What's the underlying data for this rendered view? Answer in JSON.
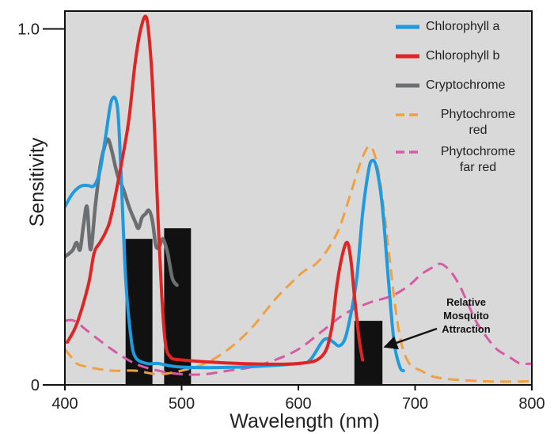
{
  "chart_data": {
    "type": "line",
    "title": "",
    "xlabel": "Wavelength (nm)",
    "ylabel": "Sensitivity",
    "xlim": [
      400,
      800
    ],
    "ylim": [
      0,
      1.05
    ],
    "x_ticks": [
      "400",
      "500",
      "600",
      "700",
      "800"
    ],
    "y_ticks": [
      {
        "value": 0,
        "label": "0"
      },
      {
        "value": 1.0,
        "label": "1.0"
      }
    ],
    "grid": false,
    "legend_position": "top-right",
    "background": "#d9d9d9",
    "series": [
      {
        "name": "Chlorophyll a",
        "color": "#1e9be0",
        "style": "solid",
        "points": [
          [
            400,
            0.5
          ],
          [
            405,
            0.53
          ],
          [
            410,
            0.55
          ],
          [
            415,
            0.56
          ],
          [
            420,
            0.56
          ],
          [
            425,
            0.56
          ],
          [
            430,
            0.6
          ],
          [
            435,
            0.7
          ],
          [
            440,
            0.8
          ],
          [
            445,
            0.78
          ],
          [
            448,
            0.6
          ],
          [
            452,
            0.3
          ],
          [
            456,
            0.15
          ],
          [
            460,
            0.08
          ],
          [
            470,
            0.06
          ],
          [
            480,
            0.06
          ],
          [
            500,
            0.05
          ],
          [
            550,
            0.05
          ],
          [
            600,
            0.06
          ],
          [
            610,
            0.07
          ],
          [
            620,
            0.12
          ],
          [
            625,
            0.13
          ],
          [
            630,
            0.12
          ],
          [
            635,
            0.11
          ],
          [
            640,
            0.13
          ],
          [
            645,
            0.2
          ],
          [
            650,
            0.3
          ],
          [
            655,
            0.48
          ],
          [
            660,
            0.6
          ],
          [
            663,
            0.63
          ],
          [
            667,
            0.61
          ],
          [
            672,
            0.5
          ],
          [
            677,
            0.3
          ],
          [
            682,
            0.12
          ],
          [
            687,
            0.05
          ],
          [
            690,
            0.04
          ]
        ]
      },
      {
        "name": "Chlorophyll b",
        "color": "#e02424",
        "style": "solid",
        "points": [
          [
            402,
            0.12
          ],
          [
            410,
            0.17
          ],
          [
            420,
            0.28
          ],
          [
            425,
            0.37
          ],
          [
            430,
            0.4
          ],
          [
            435,
            0.43
          ],
          [
            440,
            0.48
          ],
          [
            450,
            0.65
          ],
          [
            455,
            0.75
          ],
          [
            460,
            0.9
          ],
          [
            465,
            1.0
          ],
          [
            470,
            1.03
          ],
          [
            474,
            0.9
          ],
          [
            477,
            0.7
          ],
          [
            480,
            0.45
          ],
          [
            483,
            0.25
          ],
          [
            486,
            0.12
          ],
          [
            490,
            0.08
          ],
          [
            500,
            0.07
          ],
          [
            550,
            0.06
          ],
          [
            600,
            0.06
          ],
          [
            620,
            0.08
          ],
          [
            628,
            0.15
          ],
          [
            633,
            0.28
          ],
          [
            638,
            0.37
          ],
          [
            642,
            0.4
          ],
          [
            645,
            0.35
          ],
          [
            648,
            0.25
          ],
          [
            652,
            0.13
          ],
          [
            655,
            0.07
          ]
        ]
      },
      {
        "name": "Cryptochrome",
        "color": "#6b6f72",
        "style": "solid",
        "points": [
          [
            400,
            0.36
          ],
          [
            404,
            0.37
          ],
          [
            407,
            0.38
          ],
          [
            410,
            0.4
          ],
          [
            413,
            0.38
          ],
          [
            416,
            0.45
          ],
          [
            419,
            0.5
          ],
          [
            422,
            0.38
          ],
          [
            426,
            0.5
          ],
          [
            430,
            0.61
          ],
          [
            434,
            0.67
          ],
          [
            437,
            0.69
          ],
          [
            440,
            0.66
          ],
          [
            445,
            0.59
          ],
          [
            450,
            0.55
          ],
          [
            455,
            0.5
          ],
          [
            460,
            0.46
          ],
          [
            463,
            0.44
          ],
          [
            466,
            0.47
          ],
          [
            469,
            0.48
          ],
          [
            472,
            0.49
          ],
          [
            475,
            0.46
          ],
          [
            478,
            0.39
          ],
          [
            481,
            0.39
          ],
          [
            484,
            0.41
          ],
          [
            488,
            0.37
          ],
          [
            492,
            0.3
          ],
          [
            496,
            0.28
          ]
        ]
      },
      {
        "name": "Phytochrome red",
        "color": "#f0a040",
        "style": "dashed",
        "points": [
          [
            400,
            0.1
          ],
          [
            405,
            0.08
          ],
          [
            410,
            0.06
          ],
          [
            420,
            0.05
          ],
          [
            440,
            0.04
          ],
          [
            460,
            0.04
          ],
          [
            480,
            0.03
          ],
          [
            500,
            0.04
          ],
          [
            520,
            0.06
          ],
          [
            540,
            0.1
          ],
          [
            560,
            0.16
          ],
          [
            580,
            0.24
          ],
          [
            595,
            0.29
          ],
          [
            605,
            0.32
          ],
          [
            615,
            0.34
          ],
          [
            625,
            0.38
          ],
          [
            635,
            0.44
          ],
          [
            645,
            0.54
          ],
          [
            655,
            0.64
          ],
          [
            662,
            0.67
          ],
          [
            668,
            0.61
          ],
          [
            673,
            0.5
          ],
          [
            678,
            0.36
          ],
          [
            683,
            0.22
          ],
          [
            688,
            0.12
          ],
          [
            695,
            0.06
          ],
          [
            705,
            0.04
          ],
          [
            720,
            0.02
          ],
          [
            760,
            0.01
          ],
          [
            800,
            0.01
          ]
        ]
      },
      {
        "name": "Phytochrome far red",
        "color": "#d65aa4",
        "style": "dashed",
        "points": [
          [
            400,
            0.18
          ],
          [
            408,
            0.18
          ],
          [
            420,
            0.15
          ],
          [
            440,
            0.1
          ],
          [
            460,
            0.06
          ],
          [
            480,
            0.04
          ],
          [
            500,
            0.03
          ],
          [
            520,
            0.03
          ],
          [
            540,
            0.04
          ],
          [
            560,
            0.05
          ],
          [
            580,
            0.07
          ],
          [
            600,
            0.1
          ],
          [
            620,
            0.15
          ],
          [
            640,
            0.2
          ],
          [
            660,
            0.23
          ],
          [
            680,
            0.25
          ],
          [
            695,
            0.28
          ],
          [
            705,
            0.31
          ],
          [
            715,
            0.33
          ],
          [
            722,
            0.34
          ],
          [
            730,
            0.32
          ],
          [
            738,
            0.28
          ],
          [
            745,
            0.23
          ],
          [
            752,
            0.18
          ],
          [
            760,
            0.14
          ],
          [
            770,
            0.1
          ],
          [
            780,
            0.08
          ],
          [
            790,
            0.06
          ],
          [
            800,
            0.06
          ]
        ]
      }
    ],
    "bars": {
      "name": "Relative Mosquito Attraction",
      "color": "#111111",
      "items": [
        {
          "x0": 452,
          "x1": 475,
          "value": 0.41
        },
        {
          "x0": 485,
          "x1": 508,
          "value": 0.44
        },
        {
          "x0": 648,
          "x1": 672,
          "value": 0.18
        }
      ]
    },
    "legend": [
      {
        "lines": [
          "Chlorophyll a"
        ],
        "color": "#1e9be0",
        "style": "solid"
      },
      {
        "lines": [
          "Chlorophyll b"
        ],
        "color": "#e02424",
        "style": "solid"
      },
      {
        "lines": [
          "Cryptochrome"
        ],
        "color": "#6b6f72",
        "style": "solid"
      },
      {
        "lines": [
          "Phytochrome",
          "red"
        ],
        "color": "#f0a040",
        "style": "dashed"
      },
      {
        "lines": [
          "Phytochrome",
          "far red"
        ],
        "color": "#d65aa4",
        "style": "dashed"
      }
    ],
    "annotation": {
      "lines": [
        "Relative",
        "Mosquito",
        "Attraction"
      ],
      "arrow_target_x": 672,
      "arrow_target_y": 0.12
    }
  }
}
